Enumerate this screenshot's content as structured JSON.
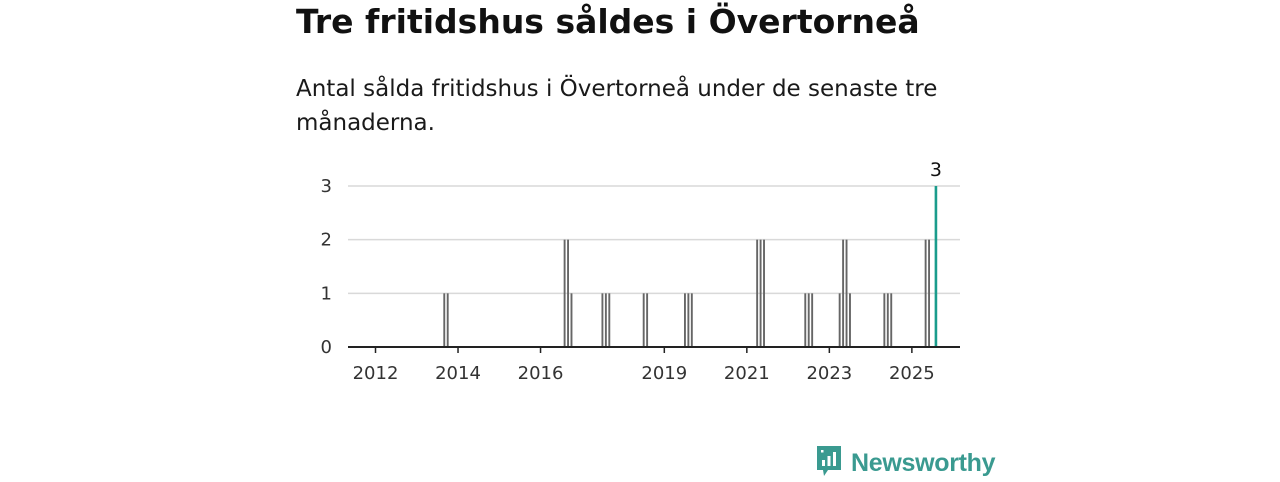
{
  "header": {
    "title": "Tre fritidshus såldes i Övertorneå",
    "subtitle": "Antal sålda fritidshus i Övertorneå under de senaste tre månaderna."
  },
  "brand": {
    "name": "Newsworthy",
    "icon": "newsworthy-logo-icon",
    "color": "#3a9a90"
  },
  "colors": {
    "bar": "#666666",
    "highlight": "#1a9c8c",
    "grid": "#d9d9d9",
    "axis": "#222222"
  },
  "chart_data": {
    "type": "bar",
    "title": "Tre fritidshus såldes i Övertorneå",
    "subtitle": "Antal sålda fritidshus i Övertorneå under de senaste tre månaderna.",
    "x_type": "date",
    "xlim": [
      "2011-05",
      "2026-03"
    ],
    "ylim": [
      0,
      3
    ],
    "y_ticks": [
      0,
      1,
      2,
      3
    ],
    "x_ticks": [
      "2012",
      "2014",
      "2016",
      "2019",
      "2021",
      "2023",
      "2025"
    ],
    "grid": true,
    "series": [
      {
        "values": [
          {
            "x": "2013-09",
            "y": 1
          },
          {
            "x": "2013-10",
            "y": 1
          },
          {
            "x": "2016-08",
            "y": 2
          },
          {
            "x": "2016-09",
            "y": 2
          },
          {
            "x": "2016-10",
            "y": 1
          },
          {
            "x": "2017-07",
            "y": 1
          },
          {
            "x": "2017-08",
            "y": 1
          },
          {
            "x": "2017-09",
            "y": 1
          },
          {
            "x": "2018-07",
            "y": 1
          },
          {
            "x": "2018-08",
            "y": 1
          },
          {
            "x": "2019-07",
            "y": 1
          },
          {
            "x": "2019-08",
            "y": 1
          },
          {
            "x": "2019-09",
            "y": 1
          },
          {
            "x": "2021-04",
            "y": 2
          },
          {
            "x": "2021-05",
            "y": 2
          },
          {
            "x": "2021-06",
            "y": 2
          },
          {
            "x": "2022-06",
            "y": 1
          },
          {
            "x": "2022-07",
            "y": 1
          },
          {
            "x": "2022-08",
            "y": 1
          },
          {
            "x": "2023-04",
            "y": 1
          },
          {
            "x": "2023-05",
            "y": 2
          },
          {
            "x": "2023-06",
            "y": 2
          },
          {
            "x": "2023-07",
            "y": 1
          },
          {
            "x": "2024-05",
            "y": 1
          },
          {
            "x": "2024-06",
            "y": 1
          },
          {
            "x": "2024-07",
            "y": 1
          },
          {
            "x": "2025-05",
            "y": 2
          },
          {
            "x": "2025-06",
            "y": 2
          }
        ]
      }
    ],
    "highlight": {
      "x": "2025-08",
      "y": 3,
      "label": "3"
    }
  }
}
